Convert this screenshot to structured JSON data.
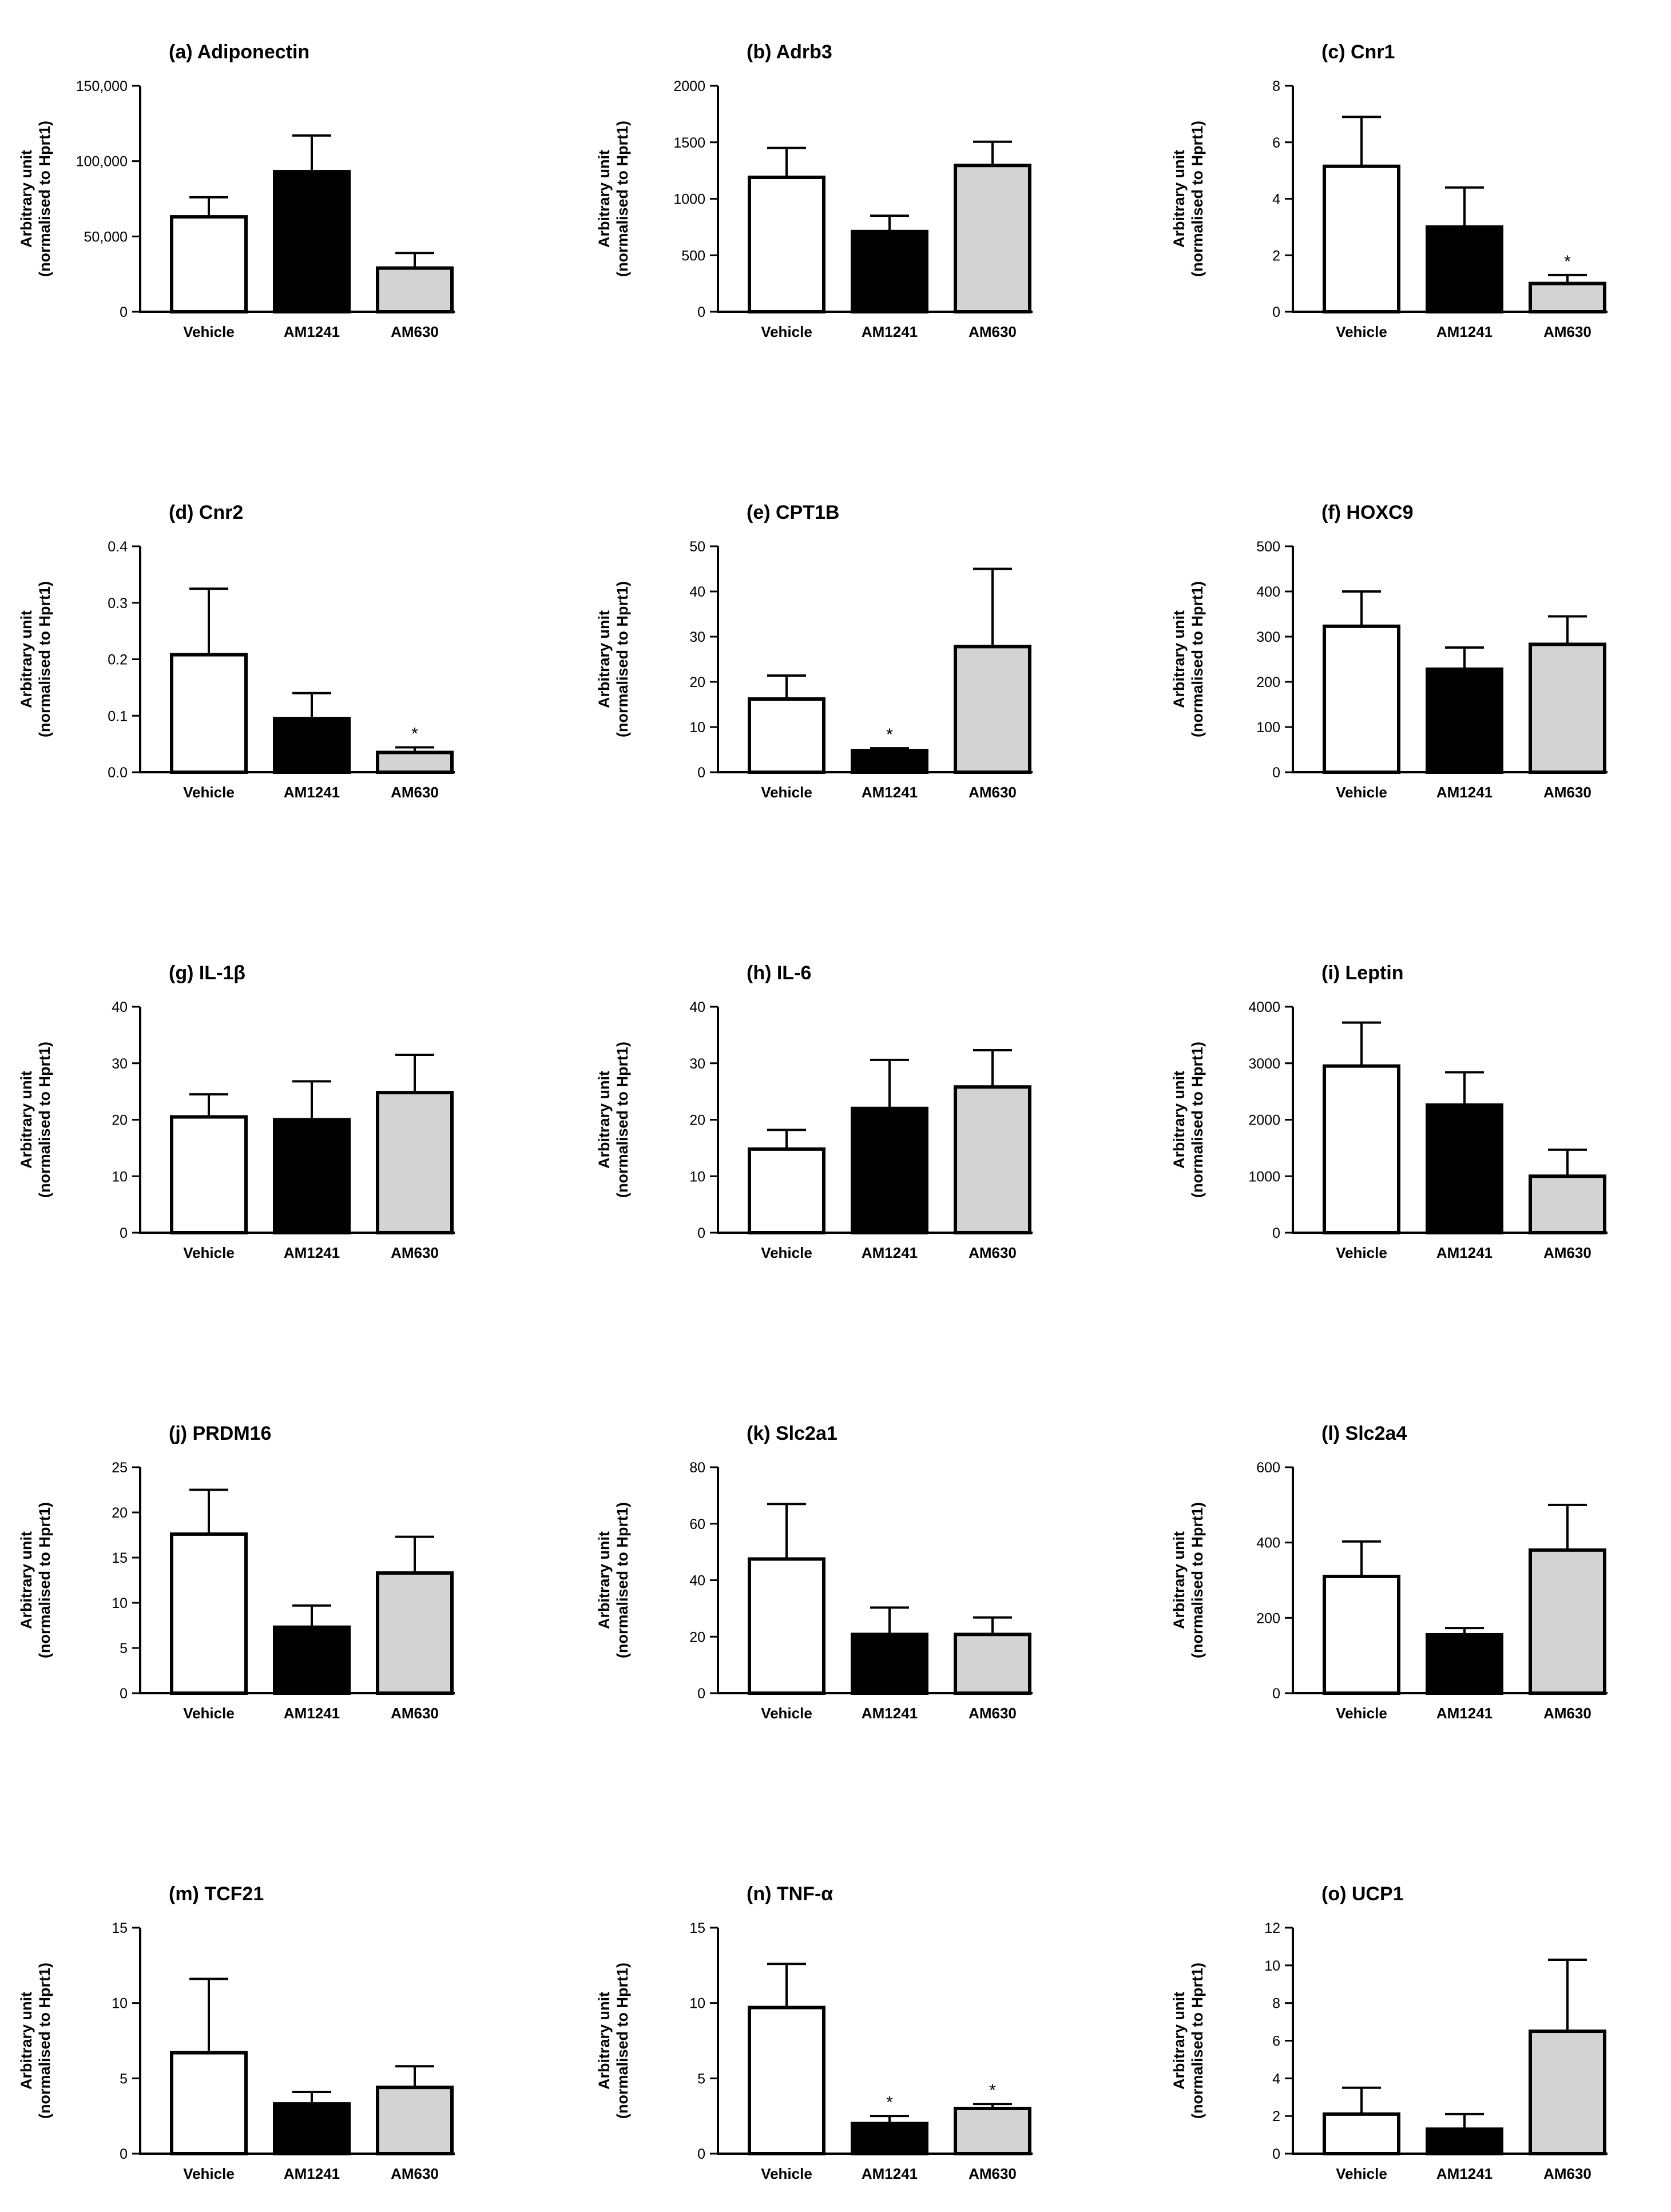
{
  "figure": {
    "ylabel_line1": "Arbitrary unit",
    "ylabel_line2": "(normalised to Hprt1)",
    "categories": [
      "Vehicle",
      "AM1241",
      "AM630"
    ],
    "colors": {
      "Vehicle": "#ffffff",
      "AM1241": "#000000",
      "AM630": "#d3d3d3",
      "stroke": "#000000"
    }
  },
  "chart_data": [
    {
      "type": "bar",
      "title": "(a) Adiponectin",
      "categories": [
        "Vehicle",
        "AM1241",
        "AM630"
      ],
      "values": [
        63000,
        93000,
        29000
      ],
      "errors": [
        13000,
        24000,
        10000
      ],
      "significant": [
        false,
        false,
        false
      ],
      "ylim": [
        0,
        150000
      ],
      "yticks": [
        0,
        50000,
        100000,
        150000
      ],
      "ytick_labels": [
        "0",
        "50,000",
        "100,000",
        "150,000"
      ],
      "ylabel": "Arbitrary unit (normalised to Hprt1)"
    },
    {
      "type": "bar",
      "title": "(b) Adrb3",
      "categories": [
        "Vehicle",
        "AM1241",
        "AM630"
      ],
      "values": [
        1190,
        710,
        1295
      ],
      "errors": [
        260,
        140,
        210
      ],
      "significant": [
        false,
        false,
        false
      ],
      "ylim": [
        0,
        2000
      ],
      "yticks": [
        0,
        500,
        1000,
        1500,
        2000
      ],
      "ytick_labels": [
        "0",
        "500",
        "1000",
        "1500",
        "2000"
      ],
      "ylabel": "Arbitrary unit (normalised to Hprt1)"
    },
    {
      "type": "bar",
      "title": "(c) Cnr1",
      "categories": [
        "Vehicle",
        "AM1241",
        "AM630"
      ],
      "values": [
        5.15,
        3.0,
        1.0
      ],
      "errors": [
        1.75,
        1.4,
        0.3
      ],
      "significant": [
        false,
        false,
        true
      ],
      "ylim": [
        0,
        8
      ],
      "yticks": [
        0,
        2,
        4,
        6,
        8
      ],
      "ytick_labels": [
        "0",
        "2",
        "4",
        "6",
        "8"
      ],
      "ylabel": "Arbitrary unit (normalised to Hprt1)"
    },
    {
      "type": "bar",
      "title": "(d) Cnr2",
      "categories": [
        "Vehicle",
        "AM1241",
        "AM630"
      ],
      "values": [
        0.208,
        0.095,
        0.035
      ],
      "errors": [
        0.117,
        0.045,
        0.009
      ],
      "significant": [
        false,
        false,
        true
      ],
      "ylim": [
        0,
        0.4
      ],
      "yticks": [
        0,
        0.1,
        0.2,
        0.3,
        0.4
      ],
      "ytick_labels": [
        "0.0",
        "0.1",
        "0.2",
        "0.3",
        "0.4"
      ],
      "ylabel": "Arbitrary unit (normalised to Hprt1)"
    },
    {
      "type": "bar",
      "title": "(e) CPT1B",
      "categories": [
        "Vehicle",
        "AM1241",
        "AM630"
      ],
      "values": [
        16.2,
        4.8,
        27.8
      ],
      "errors": [
        5.2,
        0.5,
        17.2
      ],
      "significant": [
        false,
        true,
        false
      ],
      "ylim": [
        0,
        50
      ],
      "yticks": [
        0,
        10,
        20,
        30,
        40,
        50
      ],
      "ytick_labels": [
        "0",
        "10",
        "20",
        "30",
        "40",
        "50"
      ],
      "ylabel": "Arbitrary unit (normalised to Hprt1)"
    },
    {
      "type": "bar",
      "title": "(f) HOXC9",
      "categories": [
        "Vehicle",
        "AM1241",
        "AM630"
      ],
      "values": [
        323,
        228,
        283
      ],
      "errors": [
        77,
        48,
        62
      ],
      "significant": [
        false,
        false,
        false
      ],
      "ylim": [
        0,
        500
      ],
      "yticks": [
        0,
        100,
        200,
        300,
        400,
        500
      ],
      "ytick_labels": [
        "0",
        "100",
        "200",
        "300",
        "400",
        "500"
      ],
      "ylabel": "Arbitrary unit (normalised to Hprt1)"
    },
    {
      "type": "bar",
      "title": "(g) IL-1β",
      "categories": [
        "Vehicle",
        "AM1241",
        "AM630"
      ],
      "values": [
        20.5,
        20.0,
        24.8
      ],
      "errors": [
        4.0,
        6.8,
        6.7
      ],
      "significant": [
        false,
        false,
        false
      ],
      "ylim": [
        0,
        40
      ],
      "yticks": [
        0,
        10,
        20,
        30,
        40
      ],
      "ytick_labels": [
        "0",
        "10",
        "20",
        "30",
        "40"
      ],
      "ylabel": "Arbitrary unit (normalised to Hprt1)"
    },
    {
      "type": "bar",
      "title": "(h) IL-6",
      "categories": [
        "Vehicle",
        "AM1241",
        "AM630"
      ],
      "values": [
        14.8,
        22.0,
        25.8
      ],
      "errors": [
        3.4,
        8.6,
        6.5
      ],
      "significant": [
        false,
        false,
        false
      ],
      "ylim": [
        0,
        40
      ],
      "yticks": [
        0,
        10,
        20,
        30,
        40
      ],
      "ytick_labels": [
        "0",
        "10",
        "20",
        "30",
        "40"
      ],
      "ylabel": "Arbitrary unit (normalised to Hprt1)"
    },
    {
      "type": "bar",
      "title": "(i) Leptin",
      "categories": [
        "Vehicle",
        "AM1241",
        "AM630"
      ],
      "values": [
        2950,
        2260,
        1000
      ],
      "errors": [
        770,
        580,
        470
      ],
      "significant": [
        false,
        false,
        false
      ],
      "ylim": [
        0,
        4000
      ],
      "yticks": [
        0,
        1000,
        2000,
        3000,
        4000
      ],
      "ytick_labels": [
        "0",
        "1000",
        "2000",
        "3000",
        "4000"
      ],
      "ylabel": "Arbitrary unit (normalised to Hprt1)"
    },
    {
      "type": "bar",
      "title": "(j) PRDM16",
      "categories": [
        "Vehicle",
        "AM1241",
        "AM630"
      ],
      "values": [
        17.6,
        7.3,
        13.3
      ],
      "errors": [
        4.9,
        2.4,
        4.0
      ],
      "significant": [
        false,
        false,
        false
      ],
      "ylim": [
        0,
        25
      ],
      "yticks": [
        0,
        5,
        10,
        15,
        20,
        25
      ],
      "ytick_labels": [
        "0",
        "5",
        "10",
        "15",
        "20",
        "25"
      ],
      "ylabel": "Arbitrary unit (normalised to Hprt1)"
    },
    {
      "type": "bar",
      "title": "(k) Slc2a1",
      "categories": [
        "Vehicle",
        "AM1241",
        "AM630"
      ],
      "values": [
        47.5,
        20.8,
        20.8
      ],
      "errors": [
        19.5,
        9.5,
        6.0
      ],
      "significant": [
        false,
        false,
        false
      ],
      "ylim": [
        0,
        80
      ],
      "yticks": [
        0,
        20,
        40,
        60,
        80
      ],
      "ytick_labels": [
        "0",
        "20",
        "40",
        "60",
        "80"
      ],
      "ylabel": "Arbitrary unit (normalised to Hprt1)"
    },
    {
      "type": "bar",
      "title": "(l) Slc2a4",
      "categories": [
        "Vehicle",
        "AM1241",
        "AM630"
      ],
      "values": [
        310,
        155,
        380
      ],
      "errors": [
        93,
        18,
        120
      ],
      "significant": [
        false,
        false,
        false
      ],
      "ylim": [
        0,
        600
      ],
      "yticks": [
        0,
        200,
        400,
        600
      ],
      "ytick_labels": [
        "0",
        "200",
        "400",
        "600"
      ],
      "ylabel": "Arbitrary unit (normalised to Hprt1)"
    },
    {
      "type": "bar",
      "title": "(m) TCF21",
      "categories": [
        "Vehicle",
        "AM1241",
        "AM630"
      ],
      "values": [
        6.7,
        3.3,
        4.4
      ],
      "errors": [
        4.9,
        0.8,
        1.4
      ],
      "significant": [
        false,
        false,
        false
      ],
      "ylim": [
        0,
        15
      ],
      "yticks": [
        0,
        5,
        10,
        15
      ],
      "ytick_labels": [
        "0",
        "5",
        "10",
        "15"
      ],
      "ylabel": "Arbitrary unit (normalised to Hprt1)"
    },
    {
      "type": "bar",
      "title": "(n) TNF-α",
      "categories": [
        "Vehicle",
        "AM1241",
        "AM630"
      ],
      "values": [
        9.7,
        2.0,
        3.0
      ],
      "errors": [
        2.9,
        0.5,
        0.3
      ],
      "significant": [
        false,
        true,
        true
      ],
      "ylim": [
        0,
        15
      ],
      "yticks": [
        0,
        5,
        10,
        15
      ],
      "ytick_labels": [
        "0",
        "5",
        "10",
        "15"
      ],
      "ylabel": "Arbitrary unit (normalised to Hprt1)"
    },
    {
      "type": "bar",
      "title": "(o) UCP1",
      "categories": [
        "Vehicle",
        "AM1241",
        "AM630"
      ],
      "values": [
        2.1,
        1.3,
        6.5
      ],
      "errors": [
        1.4,
        0.8,
        3.8
      ],
      "significant": [
        false,
        false,
        false
      ],
      "ylim": [
        0,
        12
      ],
      "yticks": [
        0,
        2,
        4,
        6,
        8,
        10,
        12
      ],
      "ytick_labels": [
        "0",
        "2",
        "4",
        "6",
        "8",
        "10",
        "12"
      ],
      "ylabel": "Arbitrary unit (normalised to Hprt1)"
    }
  ]
}
